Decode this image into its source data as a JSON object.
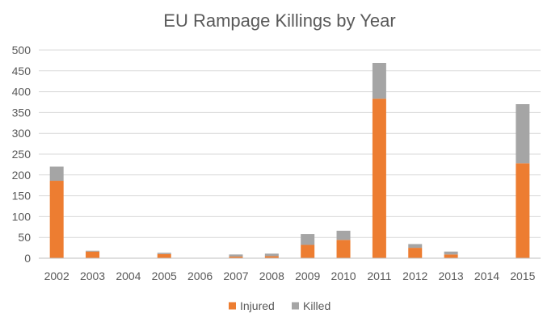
{
  "chart_data": {
    "type": "bar",
    "stacked": true,
    "title": "EU Rampage Killings by Year",
    "xlabel": "",
    "ylabel": "",
    "categories": [
      "2002",
      "2003",
      "2004",
      "2005",
      "2006",
      "2007",
      "2008",
      "2009",
      "2010",
      "2011",
      "2012",
      "2013",
      "2014",
      "2015"
    ],
    "series": [
      {
        "name": "Injured",
        "color": "#ed7d31",
        "values": [
          186,
          16,
          0,
          10,
          0,
          4,
          5,
          32,
          44,
          383,
          25,
          9,
          0,
          228
        ]
      },
      {
        "name": "Killed",
        "color": "#a5a5a5",
        "values": [
          34,
          2,
          0,
          3,
          0,
          5,
          6,
          26,
          22,
          86,
          9,
          7,
          0,
          142
        ]
      }
    ],
    "ylim": [
      0,
      500
    ],
    "yticks": [
      "0",
      "50",
      "100",
      "150",
      "200",
      "250",
      "300",
      "350",
      "400",
      "450",
      "500"
    ],
    "grid": true,
    "legend_position": "bottom"
  }
}
